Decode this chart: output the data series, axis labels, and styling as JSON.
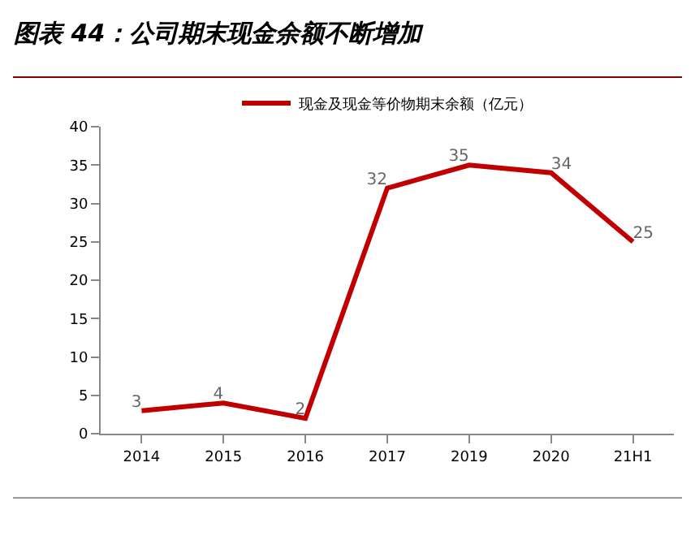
{
  "chart_data": {
    "type": "line",
    "title": "图表 44：公司期末现金余额不断增加",
    "categories": [
      "2014",
      "2015",
      "2016",
      "2017",
      "2019",
      "2020",
      "21H1"
    ],
    "series": [
      {
        "name": "现金及现金等价物期末余额（亿元）",
        "color": "#c00000",
        "values": [
          3,
          4,
          2,
          32,
          35,
          34,
          25
        ]
      }
    ],
    "ylim": [
      0,
      40
    ],
    "yticks": [
      0,
      5,
      10,
      15,
      20,
      25,
      30,
      35,
      40
    ],
    "grid": false,
    "legend": "top",
    "marker": "none",
    "line_style": "solid",
    "data_labels": true
  }
}
